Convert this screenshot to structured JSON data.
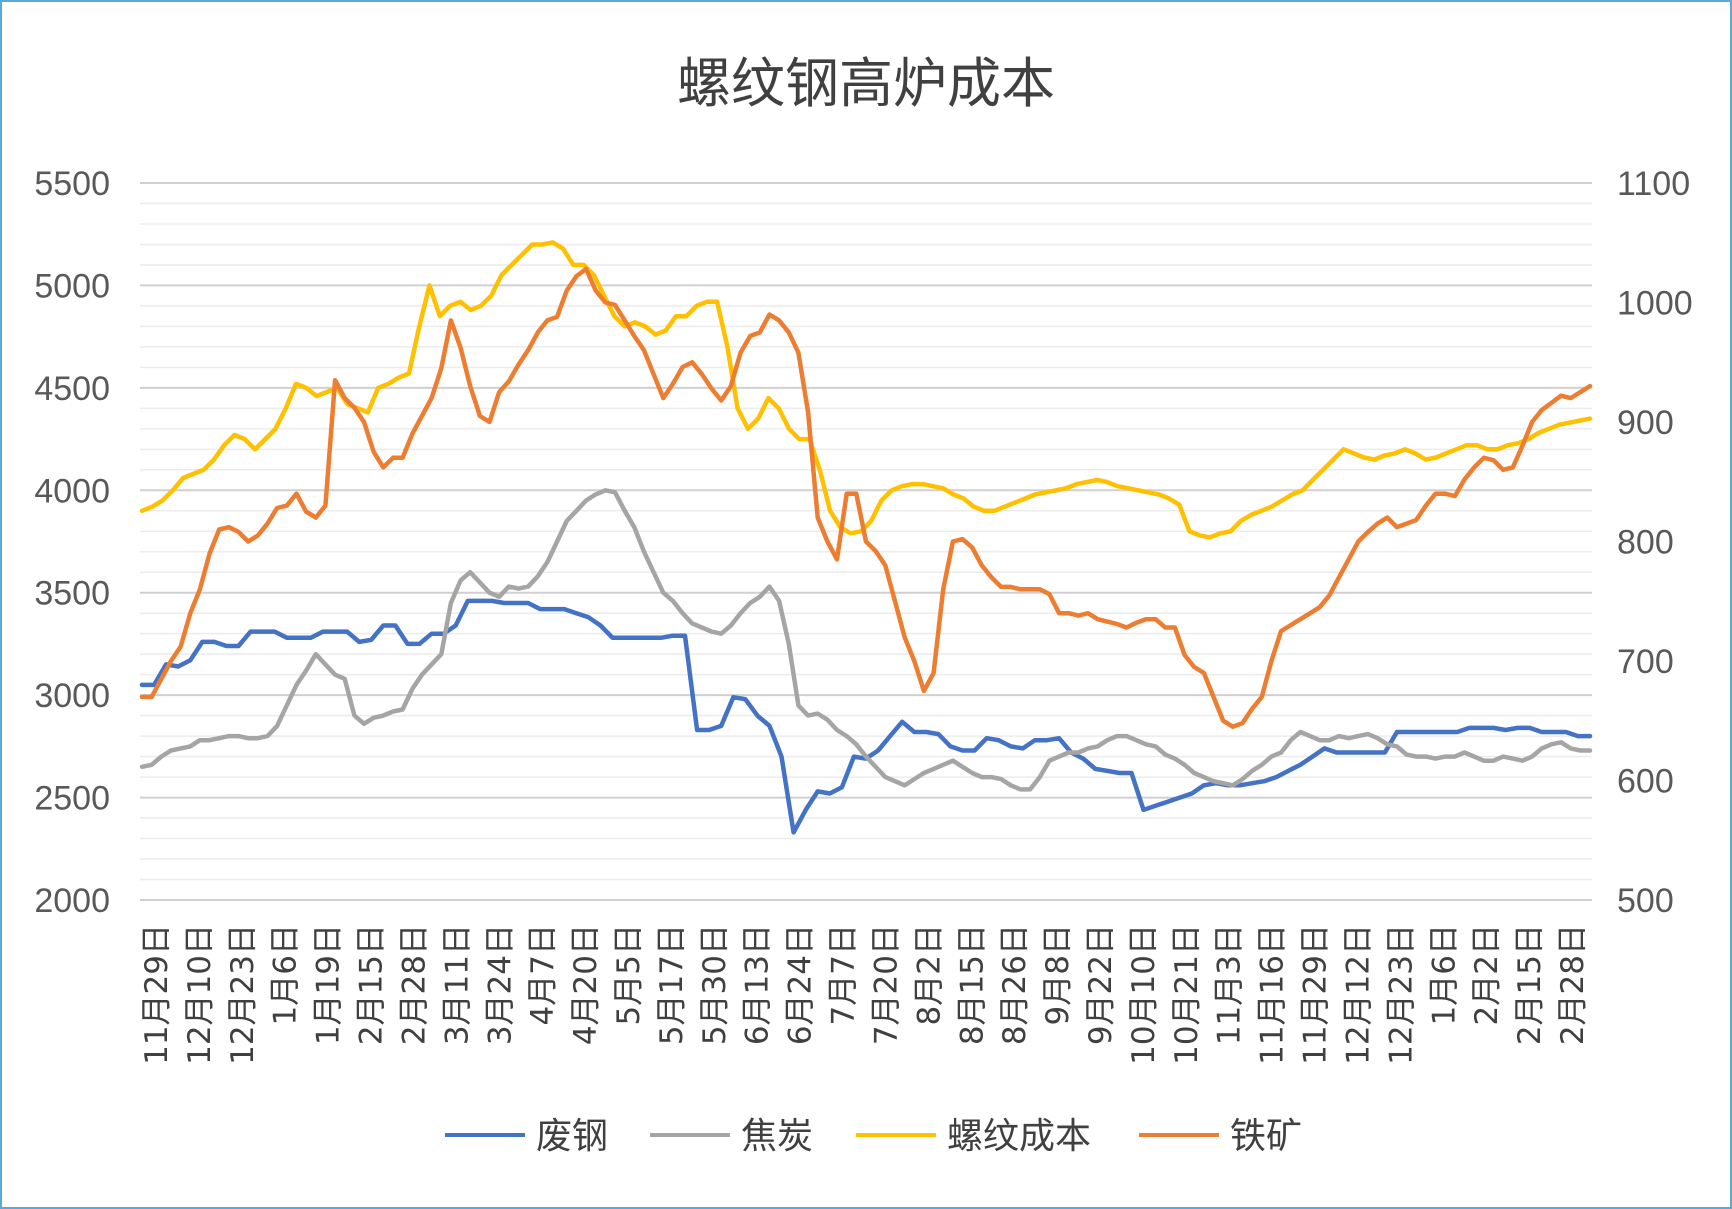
{
  "chart_data": {
    "type": "line",
    "title": "螺纹钢高炉成本",
    "left_axis": {
      "ylim": [
        2000,
        5500
      ],
      "ticks": [
        "2000",
        "2500",
        "3000",
        "3500",
        "4000",
        "4500",
        "5000",
        "5500"
      ]
    },
    "right_axis": {
      "ylim": [
        500,
        1100
      ],
      "ticks": [
        "500",
        "600",
        "700",
        "800",
        "900",
        "1000",
        "1100"
      ]
    },
    "x_tick_labels": [
      "11月29日",
      "12月10日",
      "12月23日",
      "1月6日",
      "1月19日",
      "2月15日",
      "2月28日",
      "3月11日",
      "3月24日",
      "4月7日",
      "4月20日",
      "5月5日",
      "5月17日",
      "5月30日",
      "6月13日",
      "6月24日",
      "7月7日",
      "7月20日",
      "8月2日",
      "8月15日",
      "8月26日",
      "9月8日",
      "9月22日",
      "10月10日",
      "10月21日",
      "11月3日",
      "11月16日",
      "11月29日",
      "12月12日",
      "12月23日",
      "1月6日",
      "2月2日",
      "2月15日",
      "2月28日"
    ],
    "grid": true,
    "legend_position": "bottom",
    "series": [
      {
        "name": "废钢",
        "axis": "left",
        "color": "#4472C4",
        "values": [
          3050,
          3050,
          3150,
          3140,
          3170,
          3260,
          3260,
          3240,
          3240,
          3310,
          3310,
          3310,
          3280,
          3280,
          3280,
          3310,
          3310,
          3310,
          3260,
          3270,
          3340,
          3340,
          3250,
          3250,
          3300,
          3300,
          3340,
          3460,
          3460,
          3460,
          3450,
          3450,
          3450,
          3420,
          3420,
          3420,
          3400,
          3380,
          3340,
          3280,
          3280,
          3280,
          3280,
          3280,
          3290,
          3290,
          2830,
          2830,
          2850,
          2990,
          2980,
          2900,
          2850,
          2700,
          2330,
          2440,
          2530,
          2520,
          2550,
          2700,
          2690,
          2730,
          2800,
          2870,
          2820,
          2820,
          2810,
          2750,
          2730,
          2730,
          2790,
          2780,
          2750,
          2740,
          2780,
          2780,
          2790,
          2720,
          2690,
          2640,
          2630,
          2620,
          2620,
          2440,
          2460,
          2480,
          2500,
          2520,
          2560,
          2570,
          2560,
          2560,
          2570,
          2580,
          2600,
          2630,
          2660,
          2700,
          2740,
          2720,
          2720,
          2720,
          2720,
          2720,
          2820,
          2820,
          2820,
          2820,
          2820,
          2820,
          2840,
          2840,
          2840,
          2830,
          2840,
          2840,
          2820,
          2820,
          2820,
          2800,
          2800
        ]
      },
      {
        "name": "焦炭",
        "axis": "left",
        "color": "#A5A5A5",
        "values": [
          2650,
          2660,
          2700,
          2730,
          2740,
          2750,
          2780,
          2780,
          2790,
          2800,
          2800,
          2790,
          2790,
          2800,
          2850,
          2950,
          3050,
          3120,
          3200,
          3150,
          3100,
          3080,
          2900,
          2860,
          2890,
          2900,
          2920,
          2930,
          3030,
          3100,
          3150,
          3200,
          3450,
          3560,
          3600,
          3550,
          3500,
          3480,
          3530,
          3520,
          3530,
          3580,
          3650,
          3750,
          3850,
          3900,
          3950,
          3980,
          4000,
          3990,
          3900,
          3820,
          3700,
          3600,
          3500,
          3460,
          3400,
          3350,
          3330,
          3310,
          3300,
          3340,
          3400,
          3450,
          3480,
          3530,
          3460,
          3250,
          2950,
          2900,
          2910,
          2880,
          2830,
          2800,
          2760,
          2700,
          2650,
          2600,
          2580,
          2560,
          2590,
          2620,
          2640,
          2660,
          2680,
          2650,
          2620,
          2600,
          2600,
          2590,
          2560,
          2540,
          2540,
          2600,
          2680,
          2700,
          2720,
          2720,
          2740,
          2750,
          2780,
          2800,
          2800,
          2780,
          2760,
          2750,
          2710,
          2690,
          2660,
          2620,
          2600,
          2580,
          2570,
          2560,
          2590,
          2630,
          2660,
          2700,
          2720,
          2780,
          2820,
          2800,
          2780,
          2780,
          2800,
          2790,
          2800,
          2810,
          2790,
          2760,
          2750,
          2710,
          2700,
          2700,
          2690,
          2700,
          2700,
          2720,
          2700,
          2680,
          2680,
          2700,
          2690,
          2680,
          2700,
          2740,
          2760,
          2770,
          2740,
          2730,
          2730
        ]
      },
      {
        "name": "螺纹成本",
        "axis": "left",
        "color": "#FFC000",
        "values": [
          3900,
          3920,
          3950,
          4000,
          4060,
          4080,
          4100,
          4150,
          4220,
          4270,
          4250,
          4200,
          4250,
          4300,
          4400,
          4520,
          4500,
          4460,
          4480,
          4500,
          4420,
          4400,
          4380,
          4500,
          4520,
          4550,
          4570,
          4800,
          5000,
          4850,
          4900,
          4920,
          4880,
          4900,
          4950,
          5050,
          5100,
          5150,
          5200,
          5200,
          5210,
          5180,
          5100,
          5100,
          5050,
          4950,
          4850,
          4800,
          4820,
          4800,
          4760,
          4780,
          4850,
          4850,
          4900,
          4920,
          4920,
          4700,
          4400,
          4300,
          4350,
          4450,
          4400,
          4300,
          4250,
          4250,
          4100,
          3900,
          3820,
          3790,
          3800,
          3850,
          3950,
          4000,
          4020,
          4030,
          4030,
          4020,
          4010,
          3980,
          3960,
          3920,
          3900,
          3900,
          3920,
          3940,
          3960,
          3980,
          3990,
          4000,
          4010,
          4030,
          4040,
          4050,
          4040,
          4020,
          4010,
          4000,
          3990,
          3980,
          3960,
          3930,
          3800,
          3780,
          3770,
          3790,
          3800,
          3850,
          3880,
          3900,
          3920,
          3950,
          3980,
          4000,
          4050,
          4100,
          4150,
          4200,
          4180,
          4160,
          4150,
          4170,
          4180,
          4200,
          4180,
          4150,
          4160,
          4180,
          4200,
          4220,
          4220,
          4200,
          4200,
          4220,
          4230,
          4250,
          4280,
          4300,
          4320,
          4330,
          4340,
          4350
        ]
      },
      {
        "name": "铁矿",
        "axis": "right",
        "color": "#ED7D31",
        "values": [
          670,
          670,
          685,
          700,
          712,
          740,
          760,
          790,
          810,
          812,
          808,
          800,
          805,
          815,
          828,
          830,
          840,
          825,
          820,
          830,
          935,
          920,
          912,
          900,
          875,
          862,
          870,
          870,
          890,
          905,
          920,
          945,
          985,
          962,
          930,
          905,
          900,
          925,
          934,
          948,
          960,
          975,
          985,
          988,
          1010,
          1022,
          1028,
          1010,
          1000,
          998,
          985,
          972,
          960,
          940,
          920,
          932,
          946,
          950,
          940,
          928,
          918,
          930,
          958,
          972,
          975,
          990,
          985,
          975,
          958,
          908,
          820,
          800,
          785,
          840,
          840,
          800,
          792,
          780,
          750,
          720,
          700,
          675,
          690,
          760,
          800,
          802,
          795,
          780,
          770,
          762,
          762,
          760,
          760,
          760,
          756,
          740,
          740,
          738,
          740,
          735,
          733,
          731,
          728,
          732,
          735,
          735,
          728,
          728,
          705,
          695,
          690,
          670,
          650,
          645,
          648,
          660,
          670,
          700,
          725,
          730,
          735,
          740,
          745,
          755,
          770,
          785,
          800,
          808,
          815,
          820,
          812,
          815,
          818,
          830,
          840,
          840,
          838,
          852,
          862,
          870,
          868,
          860,
          862,
          880,
          900,
          910,
          916,
          922,
          920,
          925,
          930
        ]
      }
    ]
  },
  "legend": {
    "item_1": "废钢",
    "item_2": "焦炭",
    "item_3": "螺纹成本",
    "item_4": "铁矿"
  }
}
